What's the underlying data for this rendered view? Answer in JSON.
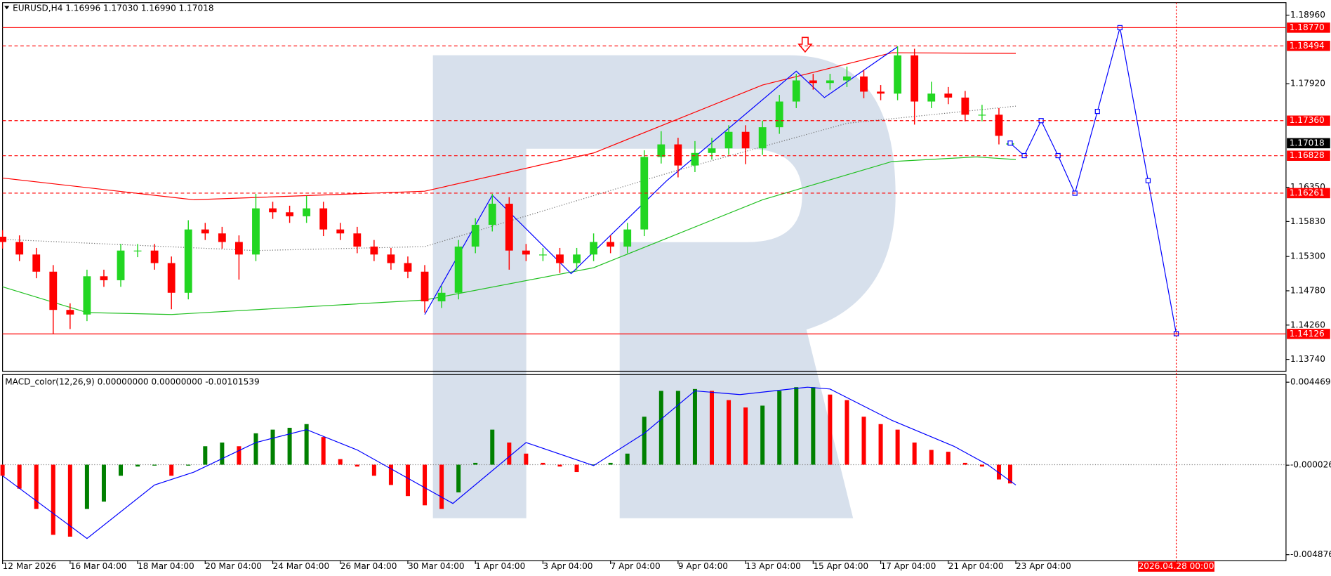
{
  "chart_data": [
    {
      "type": "candlestick",
      "title": "EURUSD,H4  1.16996 1.17030 1.16990 1.17018",
      "x": [
        0,
        3,
        6,
        9,
        12,
        15,
        18,
        21,
        24,
        27,
        30,
        33,
        36,
        39,
        42,
        45,
        48,
        51,
        54,
        57,
        60,
        63,
        66,
        69,
        72,
        75,
        78,
        81,
        84,
        87,
        90,
        93,
        96,
        99,
        102,
        105,
        108,
        111,
        114,
        117,
        120,
        123,
        126,
        129,
        132,
        135,
        138,
        141,
        144,
        147,
        150,
        153,
        156,
        159,
        162,
        165,
        168,
        171,
        174,
        177,
        179
      ],
      "open": [
        1.156,
        1.1552,
        1.1533,
        1.1507,
        1.1449,
        1.1442,
        1.15,
        1.1494,
        1.1539,
        1.1539,
        1.152,
        1.1475,
        1.1571,
        1.1565,
        1.1552,
        1.1533,
        1.1603,
        1.1597,
        1.1591,
        1.1603,
        1.1571,
        1.1565,
        1.1545,
        1.1533,
        1.152,
        1.1507,
        1.1462,
        1.1475,
        1.1545,
        1.1578,
        1.161,
        1.1539,
        1.1533,
        1.1533,
        1.152,
        1.1533,
        1.1552,
        1.1545,
        1.1571,
        1.1681,
        1.17,
        1.1668,
        1.1687,
        1.1694,
        1.1719,
        1.1694,
        1.1726,
        1.1765,
        1.1797,
        1.1793,
        1.1797,
        1.1803,
        1.178,
        1.1777,
        1.1835,
        1.1765,
        1.1777,
        1.1771,
        1.1745,
        1.1745,
        1.16996
      ],
      "high": [
        1.157,
        1.1562,
        1.1543,
        1.1517,
        1.1459,
        1.151,
        1.151,
        1.1549,
        1.1549,
        1.1549,
        1.153,
        1.1585,
        1.1581,
        1.1575,
        1.1562,
        1.1625,
        1.1613,
        1.1607,
        1.1622,
        1.1613,
        1.1581,
        1.1575,
        1.1555,
        1.1543,
        1.153,
        1.1517,
        1.1485,
        1.1555,
        1.1588,
        1.1625,
        1.162,
        1.1549,
        1.1543,
        1.1543,
        1.1543,
        1.1565,
        1.1562,
        1.1581,
        1.1691,
        1.172,
        1.171,
        1.1705,
        1.171,
        1.1729,
        1.1729,
        1.1736,
        1.1775,
        1.1807,
        1.1807,
        1.1807,
        1.1818,
        1.1813,
        1.179,
        1.1849,
        1.1845,
        1.1795,
        1.1787,
        1.1781,
        1.176,
        1.1755,
        1.1703
      ],
      "low": [
        1.1542,
        1.1523,
        1.1497,
        1.1412,
        1.142,
        1.1432,
        1.1484,
        1.1484,
        1.1529,
        1.151,
        1.145,
        1.1465,
        1.1555,
        1.1542,
        1.1495,
        1.1523,
        1.1587,
        1.1581,
        1.1581,
        1.1561,
        1.1555,
        1.1535,
        1.1523,
        1.151,
        1.1497,
        1.1445,
        1.1452,
        1.1465,
        1.1535,
        1.1568,
        1.151,
        1.1523,
        1.1523,
        1.1505,
        1.151,
        1.1523,
        1.1535,
        1.1535,
        1.1561,
        1.1671,
        1.165,
        1.1658,
        1.1677,
        1.1684,
        1.167,
        1.1684,
        1.1716,
        1.1755,
        1.1783,
        1.1783,
        1.1787,
        1.177,
        1.1767,
        1.1767,
        1.173,
        1.1755,
        1.1761,
        1.1735,
        1.1735,
        1.17,
        1.1699
      ],
      "close": [
        1.1552,
        1.1533,
        1.1507,
        1.1449,
        1.1442,
        1.15,
        1.1494,
        1.1539,
        1.1539,
        1.152,
        1.1475,
        1.1571,
        1.1565,
        1.1552,
        1.1533,
        1.1603,
        1.1597,
        1.1591,
        1.1603,
        1.1571,
        1.1565,
        1.1545,
        1.1533,
        1.152,
        1.1507,
        1.1462,
        1.1475,
        1.1545,
        1.1578,
        1.161,
        1.1539,
        1.1533,
        1.1533,
        1.152,
        1.1533,
        1.1552,
        1.1545,
        1.1571,
        1.1681,
        1.17,
        1.1668,
        1.1687,
        1.1694,
        1.1719,
        1.1694,
        1.1726,
        1.1765,
        1.1797,
        1.1793,
        1.1797,
        1.1803,
        1.178,
        1.1777,
        1.1835,
        1.1765,
        1.1777,
        1.1771,
        1.1745,
        1.1745,
        1.1713,
        1.17018
      ],
      "up_color": "#22d622",
      "down_color": "#ff0000",
      "xlim": [
        0,
        228
      ],
      "ylim": [
        1.1356,
        1.1915
      ],
      "yticks": [
        {
          "value": 1.1896,
          "label": "1.18960"
        },
        {
          "value": 1.1792,
          "label": "1.17920"
        },
        {
          "value": 1.1635,
          "label": "1.16350"
        },
        {
          "value": 1.1583,
          "label": "1.15830"
        },
        {
          "value": 1.153,
          "label": "1.15300"
        },
        {
          "value": 1.1478,
          "label": "1.14780"
        },
        {
          "value": 1.1426,
          "label": "1.14260"
        },
        {
          "value": 1.1374,
          "label": "1.13740"
        }
      ],
      "lines": [
        {
          "color": "#ff0000",
          "style": "solid",
          "x": [
            0,
            34,
            75,
            105,
            135,
            158,
            180
          ],
          "values": [
            1.1649,
            1.1616,
            1.1629,
            1.1687,
            1.179,
            1.1839,
            1.1838
          ]
        },
        {
          "color": "#22c022",
          "style": "solid",
          "x": [
            0,
            15,
            30,
            75,
            105,
            135,
            158,
            173,
            180
          ],
          "values": [
            1.1484,
            1.1445,
            1.1442,
            1.1464,
            1.1513,
            1.1616,
            1.1674,
            1.1681,
            1.1677
          ]
        },
        {
          "color": "#707070",
          "style": "dotted",
          "x": [
            0,
            45,
            75,
            120,
            150,
            180
          ],
          "values": [
            1.1556,
            1.1539,
            1.1545,
            1.1661,
            1.1732,
            1.1758
          ]
        }
      ],
      "waves": {
        "color": "#0000ff",
        "x": [
          75,
          87,
          101,
          118,
          141,
          146,
          159
        ],
        "values": [
          1.1442,
          1.1623,
          1.1504,
          1.1645,
          1.1811,
          1.1771,
          1.1848
        ]
      },
      "forecast": {
        "color": "#0000ff",
        "x": [
          179,
          181.5,
          184.5,
          187.5,
          190.5,
          194.5,
          198.5,
          203.5,
          208.5
        ],
        "values": [
          1.1702,
          1.1683,
          1.1736,
          1.1683,
          1.1626,
          1.175,
          1.1877,
          1.1645,
          1.1413
        ]
      },
      "levels": [
        {
          "value": 1.1877,
          "label": "1.18770",
          "color": "#ff0000",
          "style": "solid"
        },
        {
          "value": 1.18494,
          "color": "#ff0000",
          "style": "dashed"
        },
        {
          "value": 1.1736,
          "label": "1.17360",
          "color": "#ff0000",
          "style": "dashed"
        },
        {
          "value": 1.16828,
          "color": "#ff0000",
          "style": "dashed"
        },
        {
          "value": 1.16261,
          "color": "#ff0000",
          "style": "dashed"
        },
        {
          "value": 1.14126,
          "color": "#ff0000",
          "style": "solid"
        }
      ],
      "current": {
        "value": 1.17018,
        "color": "#000000"
      },
      "grid": false
    },
    {
      "type": "macd",
      "title": "MACD_color(12,26,9) 0.00000000 0.00000000 -0.00101539",
      "x": [
        0,
        3,
        6,
        9,
        12,
        15,
        18,
        21,
        24,
        27,
        30,
        33,
        36,
        39,
        42,
        45,
        48,
        51,
        54,
        57,
        60,
        63,
        66,
        69,
        72,
        75,
        78,
        81,
        84,
        87,
        90,
        93,
        96,
        99,
        102,
        105,
        108,
        111,
        114,
        117,
        120,
        123,
        126,
        129,
        132,
        135,
        138,
        141,
        144,
        147,
        150,
        153,
        156,
        159,
        162,
        165,
        168,
        171,
        174,
        177,
        179
      ],
      "values": [
        -0.0006,
        -0.0013,
        -0.0024,
        -0.0038,
        -0.0039,
        -0.0024,
        -0.002,
        -0.0006,
        -0.0001,
        -5e-05,
        -0.0006,
        -5e-05,
        0.001,
        0.0012,
        0.001,
        0.0017,
        0.0019,
        0.002,
        0.0022,
        0.0015,
        0.0003,
        -0.0001,
        -0.0006,
        -0.0011,
        -0.0017,
        -0.0022,
        -0.0024,
        -0.0015,
        0.0001,
        0.0019,
        0.0012,
        0.0006,
        0.0001,
        -0.0001,
        -0.0004,
        2e-05,
        0.0001,
        0.0006,
        0.0026,
        0.004,
        0.004,
        0.0041,
        0.004,
        0.0035,
        0.0031,
        0.0032,
        0.004,
        0.0042,
        0.0042,
        0.0038,
        0.0035,
        0.0026,
        0.0022,
        0.0019,
        0.0012,
        0.0008,
        0.0007,
        0.0001,
        -0.0001,
        -0.0008,
        -0.00101539
      ],
      "up_color": "#008000",
      "down_color": "#ff0000",
      "signal": {
        "color": "#0000ff",
        "x": [
          0,
          15,
          27,
          34,
          45,
          54,
          63,
          80,
          93,
          105,
          114,
          123,
          131,
          143,
          147,
          158,
          169,
          175,
          180
        ],
        "values": [
          -0.0006,
          -0.004,
          -0.0011,
          -0.0004,
          0.0012,
          0.0019,
          0.0008,
          -0.0021,
          0.0012,
          -5e-05,
          0.0017,
          0.004,
          0.0038,
          0.0042,
          0.0041,
          0.0024,
          0.001,
          0.0,
          -0.0011
        ]
      },
      "xlim": [
        0,
        228
      ],
      "ylim": [
        -0.0052,
        0.00488
      ],
      "yticks": [
        0.0044695,
        -2.6e-05,
        -0.0048763
      ],
      "xticks": [
        {
          "value": 0,
          "label": "12 Mar 2026"
        },
        {
          "value": 12,
          "label": "16 Mar 04:00"
        },
        {
          "value": 24,
          "label": "18 Mar 04:00"
        },
        {
          "value": 36,
          "label": "20 Mar 04:00"
        },
        {
          "value": 48,
          "label": "24 Mar 04:00"
        },
        {
          "value": 60,
          "label": "26 Mar 04:00"
        },
        {
          "value": 72,
          "label": "30 Mar 04:00"
        },
        {
          "value": 84,
          "label": "1 Apr 04:00"
        },
        {
          "value": 96,
          "label": "3 Apr 04:00"
        },
        {
          "value": 108,
          "label": "7 Apr 04:00"
        },
        {
          "value": 120,
          "label": "9 Apr 04:00"
        },
        {
          "value": 132,
          "label": "13 Apr 04:00"
        },
        {
          "value": 144,
          "label": "15 Apr 04:00"
        },
        {
          "value": 156,
          "label": "17 Apr 04:00"
        },
        {
          "value": 168,
          "label": "21 Apr 04:00"
        },
        {
          "value": 180,
          "label": "23 Apr 04:00"
        },
        {
          "value": 208.5,
          "label": "2026.04.28 00:00",
          "highlight": true
        }
      ]
    }
  ]
}
